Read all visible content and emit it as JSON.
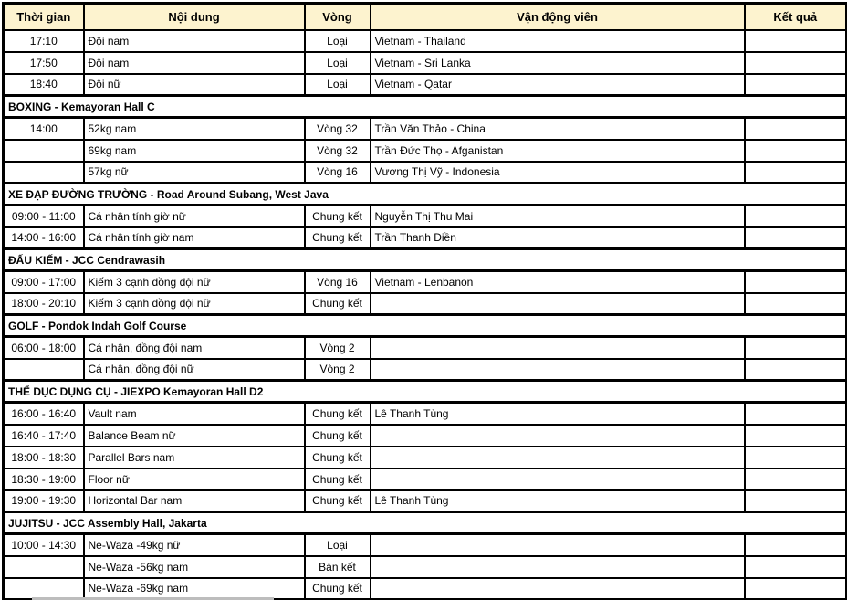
{
  "colors": {
    "header_bg": "#FDF3CF",
    "border": "#000000",
    "text": "#000000",
    "bottom_strip": "#BDBDBD"
  },
  "table": {
    "headers": [
      "Thời gian",
      "Nội dung",
      "Vòng",
      "Vận động viên",
      "Kết quả"
    ],
    "rows": [
      {
        "type": "data",
        "time": "17:10",
        "content": "Đội nam",
        "round": "Loại",
        "athlete": "Vietnam - Thailand",
        "result": ""
      },
      {
        "type": "data",
        "time": "17:50",
        "content": "Đội nam",
        "round": "Loại",
        "athlete": "Vietnam - Sri Lanka",
        "result": ""
      },
      {
        "type": "data",
        "time": "18:40",
        "content": "Đội nữ",
        "round": "Loại",
        "athlete": "Vietnam - Qatar",
        "result": ""
      },
      {
        "type": "section",
        "label": "BOXING - Kemayoran Hall C"
      },
      {
        "type": "data",
        "time": "14:00",
        "content": "52kg nam",
        "round": "Vòng 32",
        "athlete": "Trần Văn Thảo - China",
        "result": ""
      },
      {
        "type": "data",
        "time": "",
        "content": "69kg nam",
        "round": "Vòng 32",
        "athlete": "Trần Đức Thọ - Afganistan",
        "result": ""
      },
      {
        "type": "data",
        "time": "",
        "content": "57kg nữ",
        "round": "Vòng 16",
        "athlete": "Vương Thị Vỹ - Indonesia",
        "result": ""
      },
      {
        "type": "section",
        "label": "XE ĐẠP ĐƯỜNG TRƯỜNG - Road Around Subang, West Java"
      },
      {
        "type": "data",
        "time": "09:00 - 11:00",
        "content": "Cá nhân tính giờ nữ",
        "round": "Chung kết",
        "athlete": "Nguyễn Thị Thu Mai",
        "result": ""
      },
      {
        "type": "data",
        "time": "14:00 - 16:00",
        "content": "Cá nhân tính giờ nam",
        "round": "Chung kết",
        "athlete": "Trần Thanh Điền",
        "result": ""
      },
      {
        "type": "section",
        "label": "ĐẤU KIẾM - JCC Cendrawasih"
      },
      {
        "type": "data",
        "time": "09:00 - 17:00",
        "content": "Kiếm 3 cạnh đồng đội nữ",
        "round": "Vòng 16",
        "athlete": "Vietnam - Lenbanon",
        "result": ""
      },
      {
        "type": "data",
        "time": "18:00 - 20:10",
        "content": "Kiếm 3 cạnh đồng đội nữ",
        "round": "Chung kết",
        "athlete": "",
        "result": ""
      },
      {
        "type": "section",
        "label": "GOLF - Pondok Indah Golf Course"
      },
      {
        "type": "data",
        "time": "06:00 - 18:00",
        "content": "Cá nhân, đồng đội nam",
        "round": "Vòng 2",
        "athlete": "",
        "result": ""
      },
      {
        "type": "data",
        "time": "",
        "content": "Cá nhân, đồng đội nữ",
        "round": "Vòng 2",
        "athlete": "",
        "result": ""
      },
      {
        "type": "section",
        "label": "THỂ DỤC DỤNG CỤ - JIEXPO Kemayoran Hall D2"
      },
      {
        "type": "data",
        "time": "16:00 - 16:40",
        "content": "Vault nam",
        "round": "Chung kết",
        "athlete": "Lê Thanh Tùng",
        "result": ""
      },
      {
        "type": "data",
        "time": "16:40 - 17:40",
        "content": "Balance Beam nữ",
        "round": "Chung kết",
        "athlete": "",
        "result": ""
      },
      {
        "type": "data",
        "time": "18:00 - 18:30",
        "content": "Parallel Bars nam",
        "round": "Chung kết",
        "athlete": "",
        "result": ""
      },
      {
        "type": "data",
        "time": "18:30 - 19:00",
        "content": "Floor nữ",
        "round": "Chung kết",
        "athlete": "",
        "result": ""
      },
      {
        "type": "data",
        "time": "19:00 - 19:30",
        "content": "Horizontal Bar nam",
        "round": "Chung kết",
        "athlete": "Lê Thanh Tùng",
        "result": ""
      },
      {
        "type": "section",
        "label": "JUJITSU - JCC Assembly Hall, Jakarta"
      },
      {
        "type": "data",
        "time": "10:00 - 14:30",
        "content": "Ne-Waza -49kg nữ",
        "round": "Loại",
        "athlete": "",
        "result": ""
      },
      {
        "type": "data",
        "time": "",
        "content": "Ne-Waza -56kg nam",
        "round": "Bán kết",
        "athlete": "",
        "result": ""
      },
      {
        "type": "data",
        "time": "",
        "content": "Ne-Waza -69kg nam",
        "round": "Chung kết",
        "athlete": "",
        "result": ""
      }
    ]
  }
}
